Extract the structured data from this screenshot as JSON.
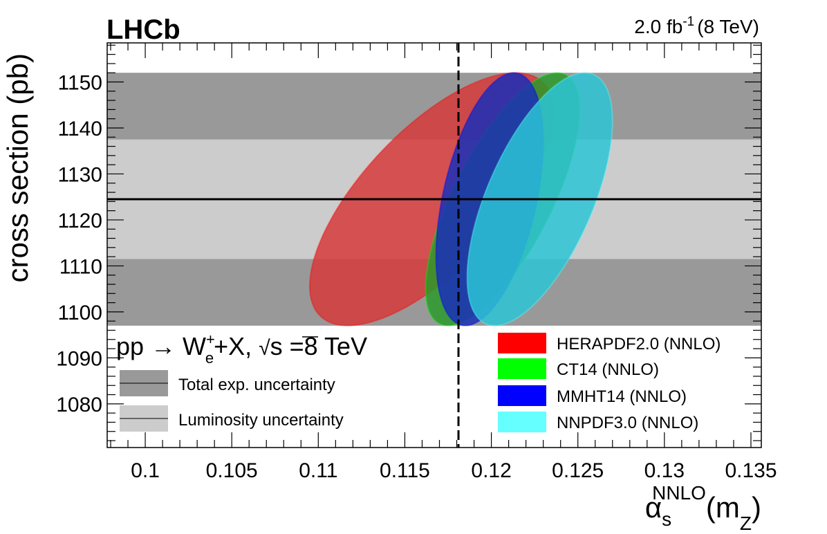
{
  "chart_data": {
    "type": "contour",
    "experiment_label": "LHCb",
    "lumi_label": "2.0 fb",
    "lumi_exp": "-1",
    "energy_label": "(8 TeV)",
    "process": {
      "prefix": "pp → W",
      "sup": "+",
      "sub": "e",
      "suffix": "+X, ",
      "sqrt": "√",
      "s_label": "s",
      "energy": " =8 TeV"
    },
    "xlabel": {
      "alpha": "α",
      "sub": "s",
      "sup": "NNLO",
      "tail": "(m",
      "tail_sub": "Z",
      "close": ")"
    },
    "ylabel": "cross section (pb)",
    "xlim": [
      0.0978,
      0.1356
    ],
    "ylim": [
      1070.5,
      1158.5
    ],
    "x_ticks": [
      0.1,
      0.105,
      0.11,
      0.115,
      0.12,
      0.125,
      0.13,
      0.135
    ],
    "x_tick_labels": [
      "0.1",
      "0.105",
      "0.11",
      "0.115",
      "0.12",
      "0.125",
      "0.13",
      "0.135"
    ],
    "y_ticks": [
      1080,
      1090,
      1100,
      1110,
      1120,
      1130,
      1140,
      1150
    ],
    "y_tick_labels": [
      "1080",
      "1090",
      "1100",
      "1110",
      "1120",
      "1130",
      "1140",
      "1150"
    ],
    "measurement": {
      "central": 1124.5,
      "lumi_band": [
        1111.5,
        1137.5
      ],
      "total_band": [
        1097,
        1152
      ]
    },
    "alpha_s_reference": 0.1181,
    "bands": [
      {
        "name": "Total exp. uncertainty",
        "color": "#999999",
        "range": [
          1097,
          1152
        ]
      },
      {
        "name": "Luminosity uncertainty",
        "color": "#cccccc",
        "range": [
          1111.5,
          1137.5
        ]
      }
    ],
    "series": [
      {
        "name": "HERAPDF2.0 (NNLO)",
        "color": "#ff0000",
        "fill": "#d63a3a",
        "ellipse": {
          "x_range": [
            0.1095,
            0.1236
          ],
          "y_range": [
            1097,
            1152
          ],
          "x_at_ymax": 0.1214,
          "x_at_ymin": 0.1141
        }
      },
      {
        "name": "CT14 (NNLO)",
        "color": "#00ff00",
        "fill": "#2c9a2c",
        "ellipse": {
          "x_range": [
            0.1162,
            0.1251
          ],
          "y_range": [
            1097,
            1152
          ],
          "x_at_ymax": 0.1238,
          "x_at_ymin": 0.1182
        }
      },
      {
        "name": "MMHT14 (NNLO)",
        "color": "#0000ff",
        "fill": "#1a2fb8",
        "ellipse": {
          "x_range": [
            0.1168,
            0.123
          ],
          "y_range": [
            1097,
            1152
          ],
          "x_at_ymax": 0.1213,
          "x_at_ymin": 0.118
        }
      },
      {
        "name": "NNPDF3.0 (NNLO)",
        "color": "#66ffff",
        "fill": "#2cc4d6",
        "ellipse": {
          "x_range": [
            0.1186,
            0.127
          ],
          "y_range": [
            1097,
            1152
          ],
          "x_at_ymax": 0.1254,
          "x_at_ymin": 0.1207
        }
      }
    ]
  }
}
